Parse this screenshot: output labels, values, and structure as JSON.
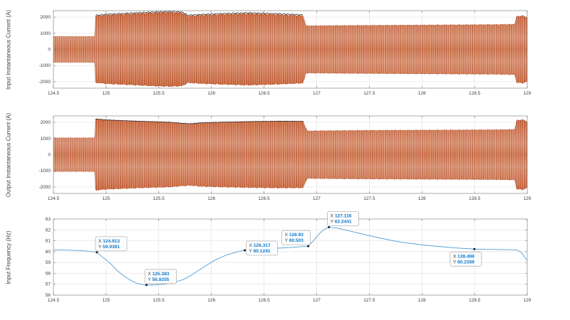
{
  "figure": {
    "background": "#ffffff"
  },
  "colors": {
    "grid": "#e2e2e2",
    "axis_box": "#979797",
    "tick_mark": "#7a7a7a",
    "tick_text": "#3d3d3d",
    "wave_main": "#cf5a20",
    "wave_dark": "#a93a10",
    "wave_light": "#f4c49c",
    "wave_accent": "#8e5a9e",
    "envelope_black": "#1a1a1a",
    "freq_line": "#4f9fd8",
    "datatip_value": "#0d78cc",
    "datatip_label": "#3a3a3a",
    "datatip_border": "#a8a8a8",
    "datatip_bg": "#fbfdff",
    "marker": "#111111"
  },
  "datatip_prefixes": {
    "x": "X",
    "y": "Y"
  },
  "chart_data": [
    {
      "type": "line",
      "id": "input-current",
      "title": "",
      "xlabel": "",
      "ylabel": "Input Instantaneous Current (A)",
      "xlim": [
        124.5,
        129
      ],
      "ylim": [
        -2400,
        2400
      ],
      "xticks": [
        124.5,
        125,
        125.5,
        126,
        126.5,
        127,
        127.5,
        128,
        128.5,
        129
      ],
      "xtick_labels": [
        "124.5",
        "125",
        "125.5",
        "126",
        "126.5",
        "127",
        "127.5",
        "128",
        "128.5",
        "129"
      ],
      "yticks": [
        -2000,
        -1000,
        0,
        1000,
        2000
      ],
      "ytick_labels": [
        "-2000",
        "-1000",
        "0",
        "1000",
        "2000"
      ],
      "grid": true,
      "waveform": {
        "kind": "dense-three-phase-band",
        "envelope": [
          [
            124.5,
            800
          ],
          [
            124.893,
            800
          ],
          [
            124.9,
            2050
          ],
          [
            125.0,
            2120
          ],
          [
            125.2,
            2180
          ],
          [
            125.45,
            2260
          ],
          [
            125.6,
            2290
          ],
          [
            125.72,
            2260
          ],
          [
            125.78,
            2060
          ],
          [
            125.9,
            2110
          ],
          [
            126.1,
            2160
          ],
          [
            126.35,
            2210
          ],
          [
            126.6,
            2160
          ],
          [
            126.78,
            2110
          ],
          [
            126.87,
            2080
          ],
          [
            126.9,
            1460
          ],
          [
            127.3,
            1480
          ],
          [
            127.8,
            1500
          ],
          [
            128.3,
            1520
          ],
          [
            128.7,
            1535
          ],
          [
            128.88,
            1555
          ],
          [
            128.9,
            2040
          ],
          [
            128.96,
            2090
          ],
          [
            129.0,
            1950
          ]
        ],
        "black_top": [
          124.9,
          126.87,
          55,
          45
        ]
      }
    },
    {
      "type": "line",
      "id": "output-current",
      "title": "",
      "xlabel": "",
      "ylabel": "Output Instantaneous Current (A)",
      "xlim": [
        124.5,
        129
      ],
      "ylim": [
        -2400,
        2400
      ],
      "xticks": [
        124.5,
        125,
        125.5,
        126,
        126.5,
        127,
        127.5,
        128,
        128.5,
        129
      ],
      "xtick_labels": [
        "124.5",
        "125",
        "125.5",
        "126",
        "126.5",
        "127",
        "127.5",
        "128",
        "128.5",
        "129"
      ],
      "yticks": [
        -2000,
        -1000,
        0,
        1000,
        2000
      ],
      "ytick_labels": [
        "-2000",
        "-1000",
        "0",
        "1000",
        "2000"
      ],
      "grid": true,
      "waveform": {
        "kind": "dense-three-phase-band",
        "envelope": [
          [
            124.5,
            1040
          ],
          [
            124.893,
            1040
          ],
          [
            124.9,
            2200
          ],
          [
            125.0,
            2140
          ],
          [
            125.3,
            2060
          ],
          [
            125.6,
            2000
          ],
          [
            125.72,
            1930
          ],
          [
            125.8,
            1900
          ],
          [
            125.9,
            1960
          ],
          [
            126.1,
            2000
          ],
          [
            126.4,
            2040
          ],
          [
            126.65,
            2060
          ],
          [
            126.87,
            2050
          ],
          [
            126.91,
            1470
          ],
          [
            127.4,
            1500
          ],
          [
            127.9,
            1515
          ],
          [
            128.4,
            1530
          ],
          [
            128.7,
            1540
          ],
          [
            128.88,
            1560
          ],
          [
            128.9,
            2120
          ],
          [
            128.96,
            2170
          ],
          [
            129.0,
            2020
          ]
        ],
        "black_top": [
          124.9,
          126.88,
          15,
          12
        ]
      }
    },
    {
      "type": "line",
      "id": "input-frequency",
      "title": "",
      "xlabel": "",
      "ylabel": "Input Frequency (Hz)",
      "xlim": [
        124.5,
        129
      ],
      "ylim": [
        56,
        63
      ],
      "xticks": [
        124.5,
        125,
        125.5,
        126,
        126.5,
        127,
        127.5,
        128,
        128.5,
        129
      ],
      "xtick_labels": [
        "124.5",
        "125",
        "125.5",
        "126",
        "126.5",
        "127",
        "127.5",
        "128",
        "128.5",
        "129"
      ],
      "yticks": [
        56,
        57,
        58,
        59,
        60,
        61,
        62,
        63
      ],
      "ytick_labels": [
        "56",
        "57",
        "58",
        "59",
        "60",
        "61",
        "62",
        "63"
      ],
      "grid": true,
      "points": [
        [
          124.5,
          60.16
        ],
        [
          124.62,
          60.14
        ],
        [
          124.75,
          60.1
        ],
        [
          124.85,
          60.03
        ],
        [
          124.913,
          59.9391
        ],
        [
          124.95,
          59.62
        ],
        [
          125.0,
          59.25
        ],
        [
          125.05,
          58.82
        ],
        [
          125.1,
          58.3
        ],
        [
          125.17,
          57.76
        ],
        [
          125.24,
          57.32
        ],
        [
          125.3,
          57.06
        ],
        [
          125.383,
          56.9255
        ],
        [
          125.46,
          56.93
        ],
        [
          125.55,
          57.0
        ],
        [
          125.65,
          57.18
        ],
        [
          125.73,
          57.42
        ],
        [
          125.79,
          57.72
        ],
        [
          125.86,
          58.15
        ],
        [
          125.95,
          58.72
        ],
        [
          126.05,
          59.3
        ],
        [
          126.15,
          59.72
        ],
        [
          126.25,
          59.99
        ],
        [
          126.317,
          60.1241
        ],
        [
          126.45,
          60.21
        ],
        [
          126.6,
          60.3
        ],
        [
          126.75,
          60.39
        ],
        [
          126.85,
          60.45
        ],
        [
          126.92,
          60.503
        ],
        [
          126.97,
          61.0
        ],
        [
          127.03,
          61.7
        ],
        [
          127.08,
          62.1
        ],
        [
          127.116,
          62.2441
        ],
        [
          127.2,
          62.16
        ],
        [
          127.3,
          61.93
        ],
        [
          127.45,
          61.58
        ],
        [
          127.6,
          61.25
        ],
        [
          127.8,
          60.87
        ],
        [
          128.0,
          60.62
        ],
        [
          128.2,
          60.44
        ],
        [
          128.35,
          60.32
        ],
        [
          128.498,
          60.2359
        ],
        [
          128.65,
          60.21
        ],
        [
          128.8,
          60.18
        ],
        [
          128.9,
          60.16
        ],
        [
          128.94,
          59.95
        ],
        [
          129.0,
          59.2
        ]
      ],
      "datatips": [
        {
          "x": 124.913,
          "y": 59.9391,
          "x_label": "124.913",
          "y_label": "59.9391",
          "placement": "ne"
        },
        {
          "x": 125.383,
          "y": 56.9255,
          "x_label": "125.383",
          "y_label": "56.9255",
          "placement": "ne"
        },
        {
          "x": 126.317,
          "y": 60.1241,
          "x_label": "126.317",
          "y_label": "60.1241",
          "placement": "e"
        },
        {
          "x": 126.92,
          "y": 60.503,
          "x_label": "126.92",
          "y_label": "60.503",
          "placement": "nw"
        },
        {
          "x": 127.116,
          "y": 62.2441,
          "x_label": "127.116",
          "y_label": "62.2441",
          "placement": "ne"
        },
        {
          "x": 128.498,
          "y": 60.2359,
          "x_label": "128.498",
          "y_label": "60.2359",
          "placement": "sw"
        }
      ]
    }
  ]
}
